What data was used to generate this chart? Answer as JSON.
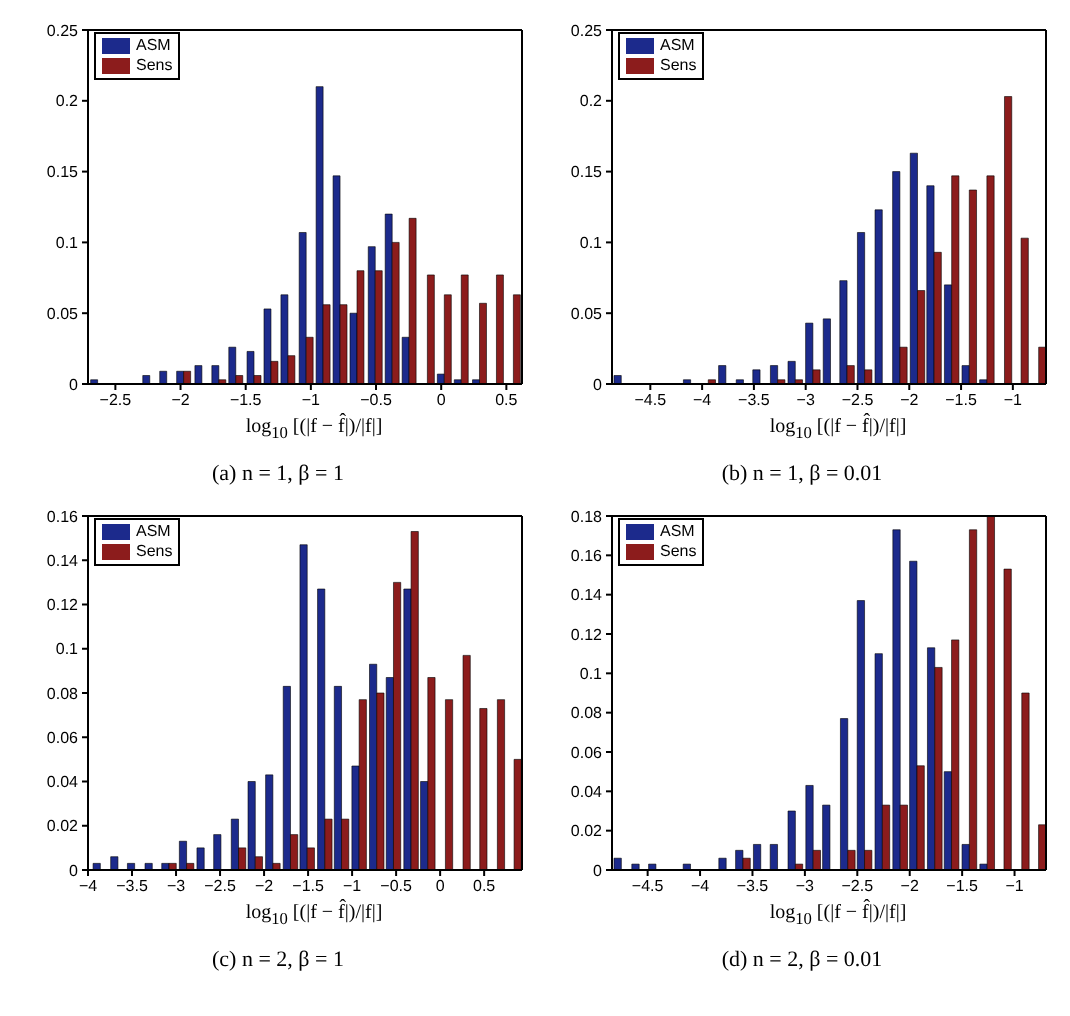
{
  "chart_data": [
    {
      "type": "bar",
      "title": "(a) n = 1, β = 1",
      "xlabel": "log$_{10}$ [(|f − f̂|)/|f|]",
      "legend": "top left",
      "x": [
        -2.64,
        -2.51,
        -2.37,
        -2.24,
        -2.11,
        -1.98,
        -1.84,
        -1.71,
        -1.58,
        -1.44,
        -1.31,
        -1.18,
        -1.04,
        -0.91,
        -0.78,
        -0.65,
        -0.51,
        -0.38,
        -0.25,
        -0.11,
        0.02,
        0.15,
        0.29,
        0.42,
        0.55
      ],
      "series": [
        {
          "name": "ASM",
          "color": "#1c2a8c",
          "values": [
            0.003,
            0,
            0,
            0.006,
            0.009,
            0.009,
            0.013,
            0.013,
            0.026,
            0.023,
            0.053,
            0.063,
            0.107,
            0.21,
            0.147,
            0.05,
            0.097,
            0.12,
            0.033,
            0,
            0.007,
            0.003,
            0.003,
            0,
            0
          ]
        },
        {
          "name": "Sens",
          "color": "#8c1c1c",
          "values": [
            0,
            0,
            0,
            0,
            0,
            0.009,
            0,
            0.003,
            0.006,
            0.006,
            0.016,
            0.02,
            0.033,
            0.056,
            0.056,
            0.08,
            0.08,
            0.1,
            0.117,
            0.077,
            0.063,
            0.077,
            0.057,
            0.077,
            0.063
          ]
        }
      ],
      "xlim": [
        -2.71,
        0.62
      ],
      "xticks": [
        -2.5,
        -2,
        -1.5,
        -1,
        -0.5,
        0,
        0.5
      ],
      "ylim": [
        0,
        0.25
      ],
      "yticks": [
        0,
        0.05,
        0.1,
        0.15,
        0.2,
        0.25
      ]
    },
    {
      "type": "bar",
      "title": "(b) n = 1, β = 0.01",
      "xlabel": "log$_{10}$ [(|f − f̂|)/|f|]",
      "legend": "top left",
      "x": [
        -4.79,
        -4.62,
        -4.45,
        -4.29,
        -4.12,
        -3.95,
        -3.78,
        -3.61,
        -3.45,
        -3.28,
        -3.11,
        -2.94,
        -2.77,
        -2.61,
        -2.44,
        -2.27,
        -2.1,
        -1.93,
        -1.77,
        -1.6,
        -1.43,
        -1.26,
        -1.09,
        -0.93,
        -0.76
      ],
      "series": [
        {
          "name": "ASM",
          "color": "#1c2a8c",
          "values": [
            0.006,
            0,
            0,
            0,
            0.003,
            0,
            0.013,
            0.003,
            0.01,
            0.013,
            0.016,
            0.043,
            0.046,
            0.073,
            0.107,
            0.123,
            0.15,
            0.163,
            0.14,
            0.07,
            0.013,
            0.003,
            0,
            0,
            0
          ]
        },
        {
          "name": "Sens",
          "color": "#8c1c1c",
          "values": [
            0,
            0,
            0,
            0,
            0,
            0.003,
            0,
            0,
            0,
            0.003,
            0.003,
            0.01,
            0,
            0.013,
            0.01,
            0,
            0.026,
            0.066,
            0.093,
            0.147,
            0.137,
            0.147,
            0.203,
            0.103,
            0.026
          ]
        }
      ],
      "xlim": [
        -4.87,
        -0.68
      ],
      "xticks": [
        -4.5,
        -4,
        -3.5,
        -3,
        -2.5,
        -2,
        -1.5,
        -1
      ],
      "ylim": [
        0,
        0.25
      ],
      "yticks": [
        0,
        0.05,
        0.1,
        0.15,
        0.2,
        0.25
      ]
    },
    {
      "type": "bar",
      "title": "(c) n = 2, β = 1",
      "xlabel": "log$_{10}$ [(|f − f̂|)/|f|]",
      "legend": "top left",
      "x": [
        -3.87,
        -3.67,
        -3.48,
        -3.28,
        -3.09,
        -2.89,
        -2.69,
        -2.5,
        -2.3,
        -2.11,
        -1.91,
        -1.71,
        -1.52,
        -1.32,
        -1.13,
        -0.93,
        -0.73,
        -0.54,
        -0.34,
        -0.15,
        0.05,
        0.25,
        0.44,
        0.64,
        0.83
      ],
      "series": [
        {
          "name": "ASM",
          "color": "#1c2a8c",
          "values": [
            0.003,
            0.006,
            0.003,
            0.003,
            0.003,
            0.013,
            0.01,
            0.016,
            0.023,
            0.04,
            0.043,
            0.083,
            0.147,
            0.127,
            0.083,
            0.047,
            0.093,
            0.087,
            0.127,
            0.04,
            0,
            0,
            0,
            0,
            0
          ]
        },
        {
          "name": "Sens",
          "color": "#8c1c1c",
          "values": [
            0,
            0,
            0,
            0,
            0.003,
            0.003,
            0,
            0,
            0.01,
            0.006,
            0.003,
            0.016,
            0.01,
            0.023,
            0.023,
            0.077,
            0.08,
            0.13,
            0.153,
            0.087,
            0.077,
            0.097,
            0.073,
            0.077,
            0.05
          ]
        }
      ],
      "xlim": [
        -4,
        0.93
      ],
      "xticks": [
        -4,
        -3.5,
        -3,
        -2.5,
        -2,
        -1.5,
        -1,
        -0.5,
        0,
        0.5
      ],
      "ylim": [
        0,
        0.16
      ],
      "yticks": [
        0,
        0.02,
        0.04,
        0.06,
        0.08,
        0.1,
        0.12,
        0.14,
        0.16
      ]
    },
    {
      "type": "bar",
      "title": "(d) n = 2, β = 0.01",
      "xlabel": "log$_{10}$ [(|f − f̂|)/|f|]",
      "legend": "top left",
      "x": [
        -4.76,
        -4.59,
        -4.43,
        -4.26,
        -4.1,
        -3.93,
        -3.76,
        -3.6,
        -3.43,
        -3.27,
        -3.1,
        -2.93,
        -2.77,
        -2.6,
        -2.44,
        -2.27,
        -2.1,
        -1.94,
        -1.77,
        -1.61,
        -1.44,
        -1.27,
        -1.11,
        -0.94,
        -0.78
      ],
      "series": [
        {
          "name": "ASM",
          "color": "#1c2a8c",
          "values": [
            0.006,
            0.003,
            0.003,
            0,
            0.003,
            0,
            0.006,
            0.01,
            0.013,
            0.013,
            0.03,
            0.043,
            0.033,
            0.077,
            0.137,
            0.11,
            0.173,
            0.157,
            0.113,
            0.05,
            0.013,
            0.003,
            0,
            0,
            0
          ]
        },
        {
          "name": "Sens",
          "color": "#8c1c1c",
          "values": [
            0,
            0,
            0,
            0,
            0,
            0,
            0,
            0.006,
            0,
            0,
            0.003,
            0.01,
            0,
            0.01,
            0.01,
            0.033,
            0.033,
            0.053,
            0.103,
            0.117,
            0.173,
            0.18,
            0.153,
            0.09,
            0.023
          ]
        }
      ],
      "xlim": [
        -4.84,
        -0.7
      ],
      "xticks": [
        -4.5,
        -4,
        -3.5,
        -3,
        -2.5,
        -2,
        -1.5,
        -1
      ],
      "ylim": [
        0,
        0.18
      ],
      "yticks": [
        0,
        0.02,
        0.04,
        0.06,
        0.08,
        0.1,
        0.12,
        0.14,
        0.16,
        0.18
      ]
    }
  ]
}
